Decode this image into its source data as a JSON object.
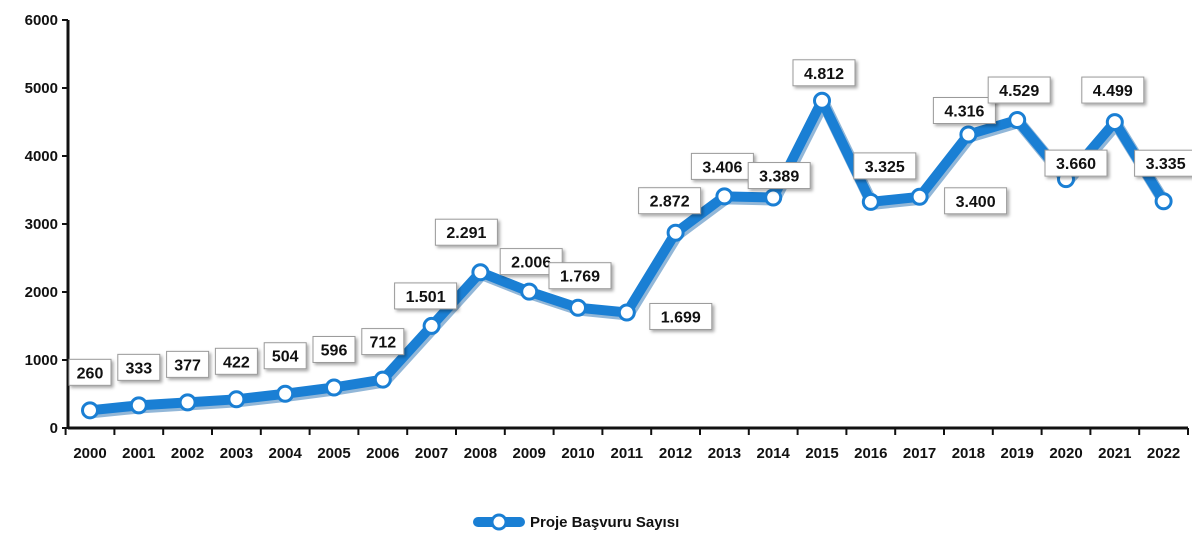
{
  "chart_data": {
    "type": "line",
    "categories": [
      "2000",
      "2001",
      "2002",
      "2003",
      "2004",
      "2005",
      "2006",
      "2007",
      "2008",
      "2009",
      "2010",
      "2011",
      "2012",
      "2013",
      "2014",
      "2015",
      "2016",
      "2017",
      "2018",
      "2019",
      "2020",
      "2021",
      "2022"
    ],
    "series": [
      {
        "name": "Proje Başvuru Sayısı",
        "values": [
          260,
          333,
          377,
          422,
          504,
          596,
          712,
          1501,
          2291,
          2006,
          1769,
          1699,
          2872,
          3406,
          3389,
          4812,
          3325,
          3400,
          4316,
          4529,
          3660,
          4499,
          3335
        ],
        "labels": [
          "260",
          "333",
          "377",
          "422",
          "504",
          "596",
          "712",
          "1.501",
          "2.291",
          "2.006",
          "1.769",
          "1.699",
          "2.872",
          "3.406",
          "3.389",
          "4.812",
          "3.325",
          "3.400",
          "4.316",
          "4.529",
          "3.660",
          "4.499",
          "3.335"
        ],
        "color": "#1a7fd4"
      }
    ],
    "ylim": [
      0,
      6000
    ],
    "yticks": [
      "0",
      "1000",
      "2000",
      "3000",
      "4000",
      "5000",
      "6000"
    ],
    "title": "",
    "xlabel": "",
    "ylabel": "",
    "legend_position": "bottom-center",
    "grid": false
  }
}
